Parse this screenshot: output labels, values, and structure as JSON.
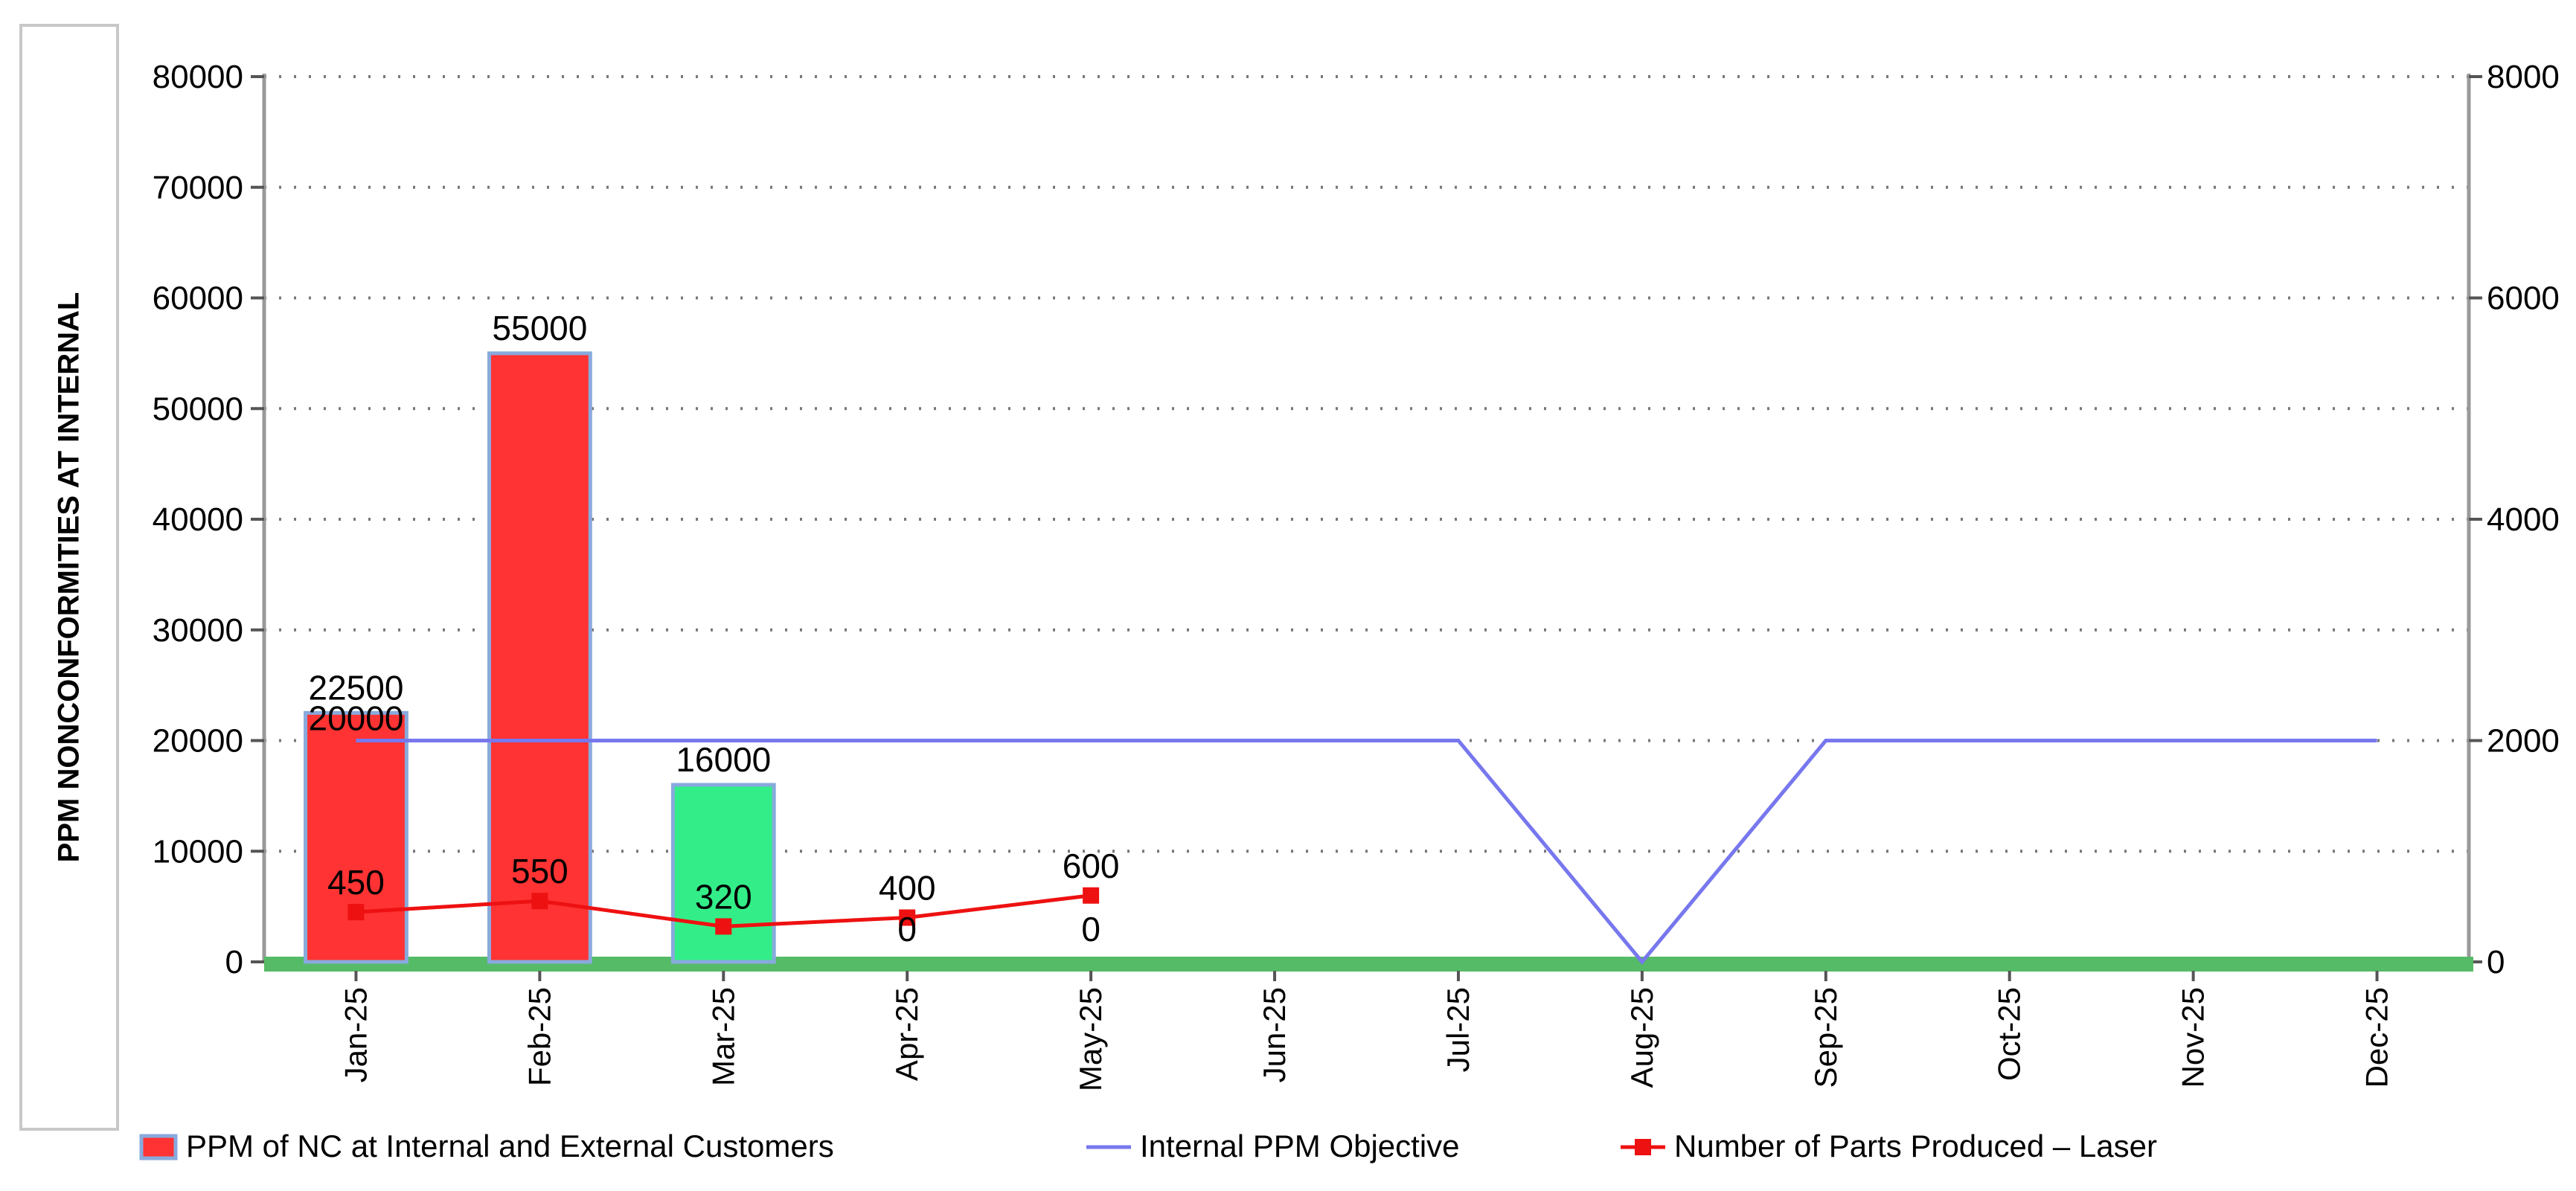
{
  "chart_data": {
    "type": "bar",
    "ylabel": "PPM NONCONFORMITIES AT INTERNAL",
    "categories": [
      "Jan-25",
      "Feb-25",
      "Mar-25",
      "Apr-25",
      "May-25",
      "Jun-25",
      "Jul-25",
      "Aug-25",
      "Sep-25",
      "Oct-25",
      "Nov-25",
      "Dec-25"
    ],
    "ylim": [
      0,
      80000
    ],
    "y_ticks": [
      "0",
      "10000",
      "20000",
      "30000",
      "40000",
      "50000",
      "60000",
      "70000",
      "80000"
    ],
    "y2lim": [
      0,
      8000
    ],
    "y2_ticks": [
      "0",
      "2000",
      "4000",
      "6000",
      "8000"
    ],
    "grid": true,
    "legend_position": "bottom",
    "series": [
      {
        "name": "PPM of NC at Internal and External Customers",
        "kind": "bar",
        "axis": "left",
        "values": [
          22500,
          55000,
          16000,
          0,
          0,
          null,
          null,
          null,
          null,
          null,
          null,
          null
        ],
        "labels": [
          "22500",
          "55000",
          "16000",
          "0",
          "0",
          "",
          "",
          "",
          "",
          "",
          "",
          ""
        ],
        "bar_colors": [
          "#ff3333",
          "#ff3333",
          "#33ee88",
          "#ff3333",
          "#ff3333"
        ],
        "legend_color": "#ff3333"
      },
      {
        "name": "Internal PPM Objective",
        "kind": "line",
        "axis": "left",
        "values": [
          20000,
          20000,
          20000,
          20000,
          20000,
          20000,
          20000,
          0,
          20000,
          20000,
          20000,
          20000
        ],
        "labels": [
          "20000",
          "",
          "",
          "",
          "",
          "",
          "",
          "",
          "",
          "",
          "",
          ""
        ],
        "color": "#7777ee"
      },
      {
        "name": "Number of Parts Produced – Laser",
        "kind": "line-marker",
        "axis": "right",
        "values": [
          450,
          550,
          320,
          400,
          600,
          null,
          null,
          null,
          null,
          null,
          null,
          null
        ],
        "labels": [
          "450",
          "550",
          "320",
          "400",
          "600",
          "",
          "",
          "",
          "",
          "",
          "",
          ""
        ],
        "color": "#ee1111"
      }
    ]
  }
}
